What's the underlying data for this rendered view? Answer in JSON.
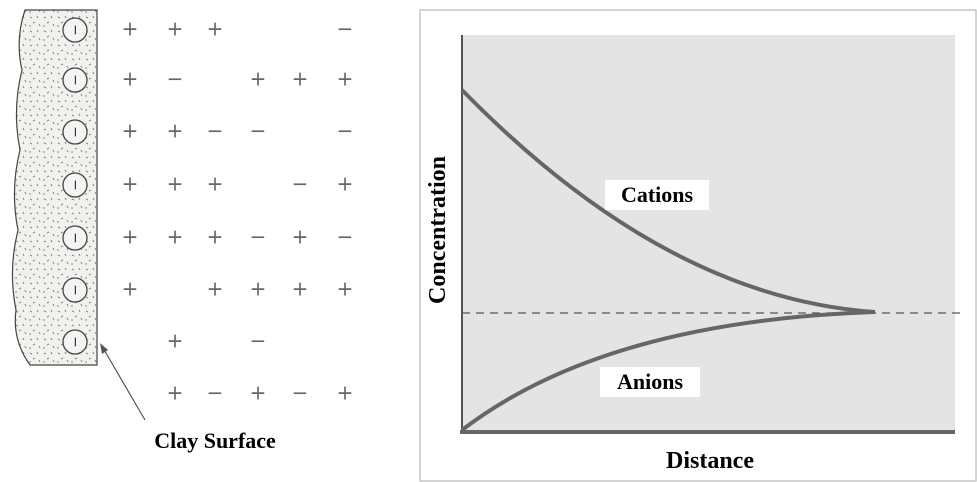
{
  "clay": {
    "label": "Clay Surface",
    "surface_charges": [
      "−",
      "−",
      "−",
      "−",
      "−",
      "−",
      "−"
    ]
  },
  "ions": {
    "rows": [
      [
        "+",
        "+",
        "+",
        null,
        null,
        "−"
      ],
      [
        "+",
        "−",
        null,
        "+",
        "+",
        "+"
      ],
      [
        "+",
        "+",
        "−",
        "−",
        null,
        "−"
      ],
      [
        "+",
        "+",
        "+",
        null,
        "−",
        "+"
      ],
      [
        "+",
        "+",
        "+",
        "−",
        "+",
        "−"
      ],
      [
        "+",
        null,
        "+",
        "+",
        "+",
        "+"
      ],
      [
        null,
        "+",
        null,
        "−",
        null,
        null
      ],
      [
        null,
        "+",
        "−",
        "+",
        "−",
        "+"
      ]
    ]
  },
  "graph": {
    "y_label": "Concentration",
    "x_label": "Distance",
    "upper_curve": "Cations",
    "lower_curve": "Anions"
  }
}
